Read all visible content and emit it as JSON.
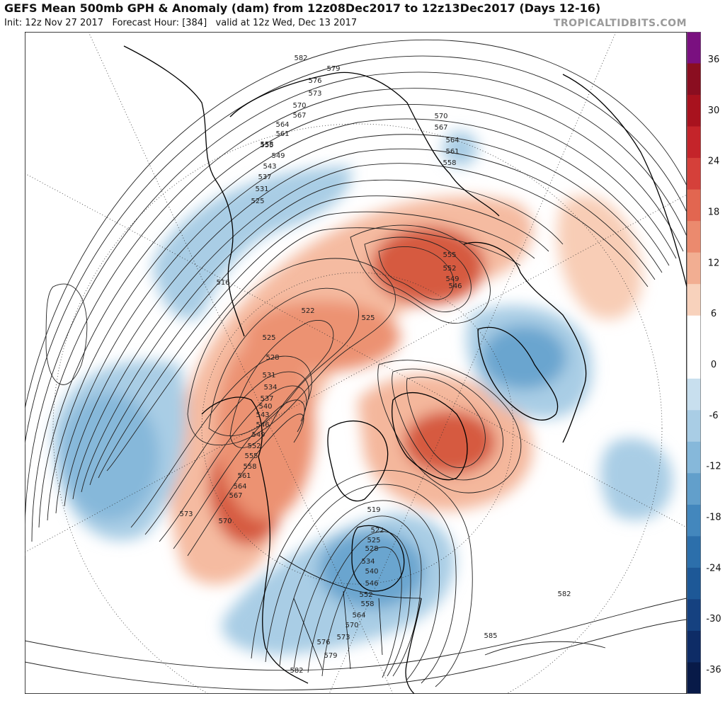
{
  "header": {
    "title": "GEFS Mean 500mb GPH & Anomaly (dam) from 12z08Dec2017 to 12z13Dec2017 (Days 12-16)",
    "subtitle": "Init: 12z Nov 27 2017   Forecast Hour: [384]   valid at 12z Wed, Dec 13 2017",
    "brand": "TROPICALTIDBITS.COM"
  },
  "colorbar": {
    "ticks": [
      "36",
      "30",
      "24",
      "18",
      "12",
      "6",
      "0",
      "-6",
      "-12",
      "-18",
      "-24",
      "-30",
      "-36"
    ],
    "colors": [
      "#7a1080",
      "#8a0e20",
      "#a8121e",
      "#c4242a",
      "#d5403a",
      "#e26650",
      "#eb8a6e",
      "#f2ae92",
      "#f8d2bc",
      "#ffffff",
      "#ffffff",
      "#c8dfee",
      "#a9cde5",
      "#86b8da",
      "#629fcb",
      "#4387bd",
      "#2c6fab",
      "#1d5897",
      "#154180",
      "#0e2c66",
      "#081a48"
    ]
  },
  "contour_labels": {
    "upper_arc": [
      "582",
      "579",
      "576",
      "573",
      "570",
      "567",
      "564",
      "561",
      "558",
      "555",
      "549",
      "543",
      "537",
      "531",
      "525"
    ],
    "asia_arc": [
      "570",
      "567",
      "564",
      "561",
      "558"
    ],
    "europe_ridge": [
      "555",
      "552",
      "549",
      "546"
    ],
    "central": [
      "516",
      "522",
      "525",
      "525",
      "528"
    ],
    "pacific_ridge": [
      "531",
      "534",
      "537",
      "540",
      "543",
      "546",
      "549",
      "552",
      "555",
      "558",
      "561",
      "564",
      "567",
      "570",
      "573"
    ],
    "north_america": [
      "519",
      "522",
      "525",
      "528",
      "534",
      "540",
      "546",
      "552",
      "558",
      "564",
      "570",
      "573",
      "576",
      "579",
      "582"
    ],
    "atlantic": [
      "582",
      "585"
    ]
  },
  "legend": {
    "positive_anomaly_color": "#e8704f",
    "negative_anomaly_color": "#5fa0cf"
  }
}
